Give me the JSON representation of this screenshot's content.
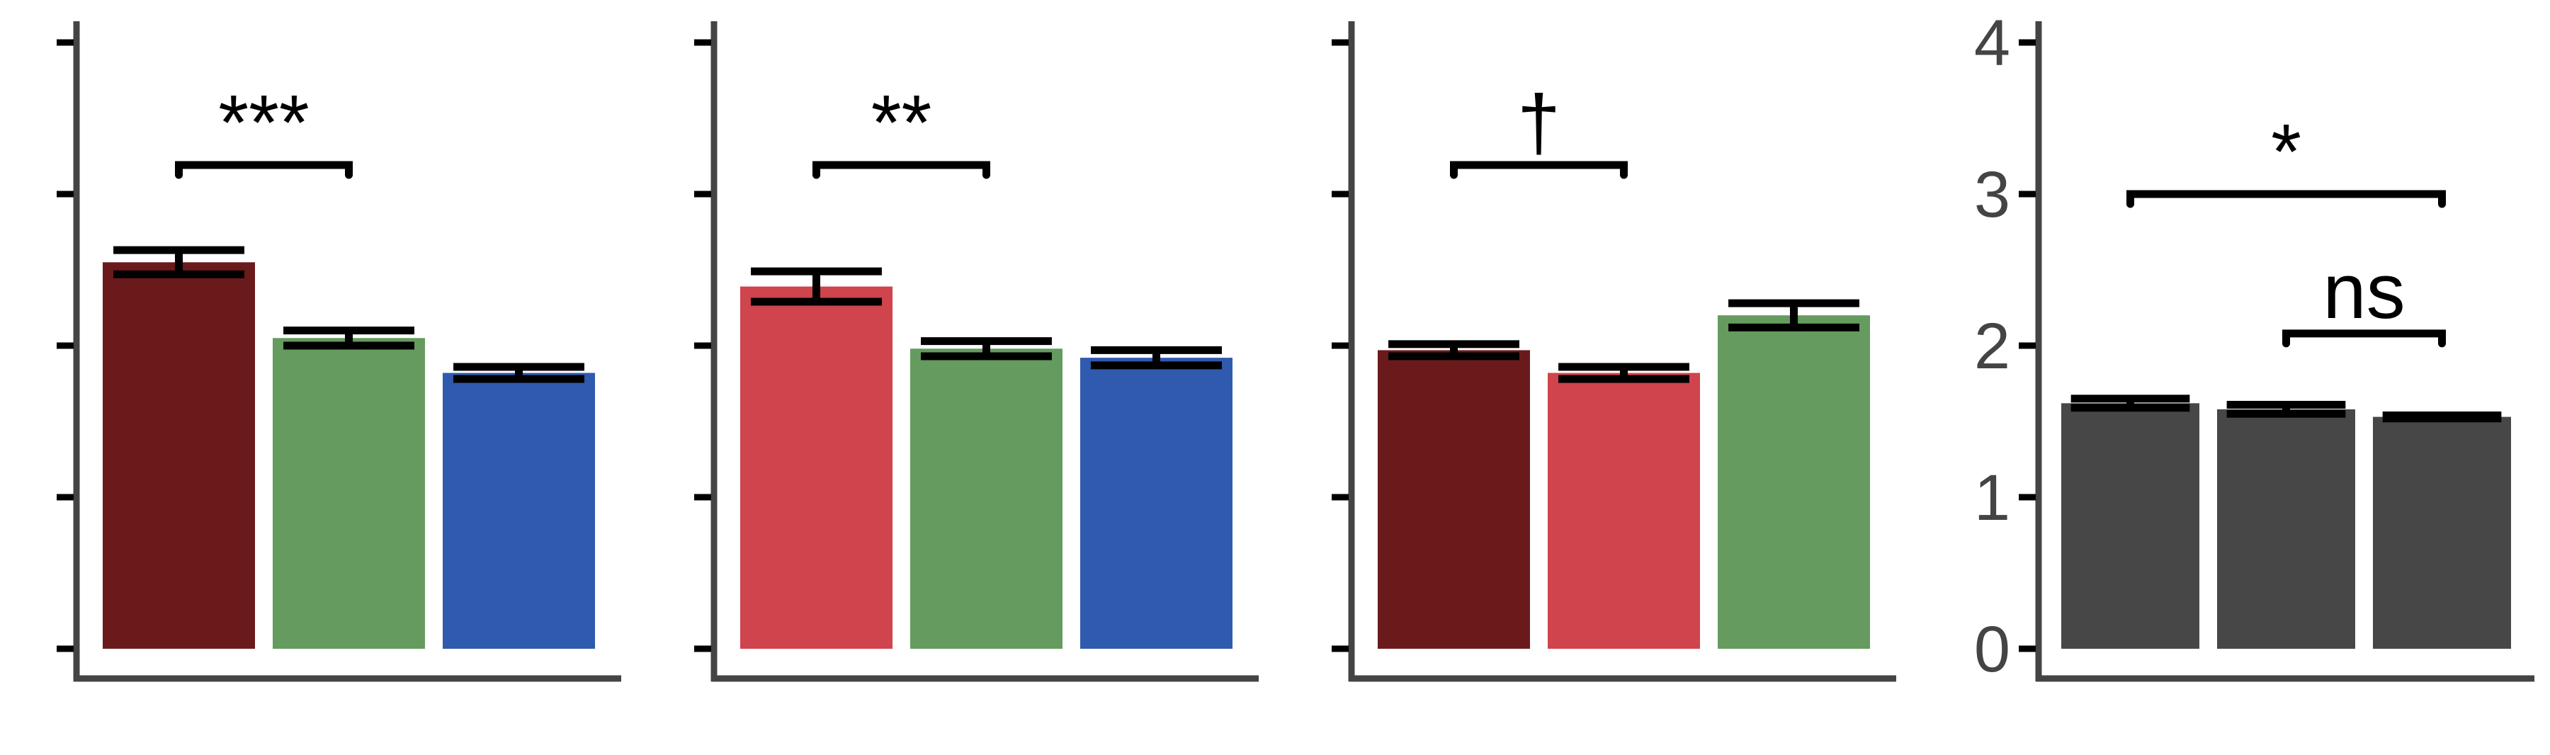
{
  "chart_data": [
    {
      "type": "bar",
      "categories": [
        "",
        "",
        ""
      ],
      "values": [
        2.55,
        2.05,
        1.82
      ],
      "errors": [
        0.08,
        0.05,
        0.04
      ],
      "colors": [
        "#6b1a1c",
        "#659b5e",
        "#2f5aad"
      ],
      "ylim": [
        0,
        4
      ],
      "yticks": [
        0,
        1,
        2,
        3,
        4
      ],
      "show_tick_labels": false,
      "grid": false,
      "annotations": [
        {
          "label": "***",
          "from": 0,
          "to": 1
        }
      ]
    },
    {
      "type": "bar",
      "categories": [
        "",
        "",
        ""
      ],
      "values": [
        2.39,
        1.98,
        1.92
      ],
      "errors": [
        0.1,
        0.05,
        0.05
      ],
      "colors": [
        "#cf444d",
        "#659b5e",
        "#2f5aad"
      ],
      "ylim": [
        0,
        4
      ],
      "yticks": [
        0,
        1,
        2,
        3,
        4
      ],
      "show_tick_labels": false,
      "grid": false,
      "annotations": [
        {
          "label": "**",
          "from": 0,
          "to": 1
        }
      ]
    },
    {
      "type": "bar",
      "categories": [
        "",
        "",
        ""
      ],
      "values": [
        1.97,
        1.82,
        2.2
      ],
      "errors": [
        0.04,
        0.04,
        0.08
      ],
      "colors": [
        "#6b1a1c",
        "#cf444d",
        "#659b5e"
      ],
      "ylim": [
        0,
        4
      ],
      "yticks": [
        0,
        1,
        2,
        3,
        4
      ],
      "show_tick_labels": false,
      "grid": false,
      "annotations": [
        {
          "label": "†",
          "from": 0,
          "to": 1
        }
      ]
    },
    {
      "type": "bar",
      "categories": [
        "",
        "",
        ""
      ],
      "values": [
        1.62,
        1.58,
        1.53
      ],
      "errors": [
        0.03,
        0.03,
        0.01
      ],
      "colors": [
        "#474747",
        "#474747",
        "#474747"
      ],
      "ylim": [
        0,
        4
      ],
      "yticks": [
        0,
        1,
        2,
        3,
        4
      ],
      "show_tick_labels": true,
      "grid": false,
      "annotations": [
        {
          "label": "*",
          "from": 0,
          "to": 2,
          "level": 3.0
        },
        {
          "label": "ns",
          "from": 1,
          "to": 2,
          "level": 2.08
        }
      ]
    }
  ]
}
